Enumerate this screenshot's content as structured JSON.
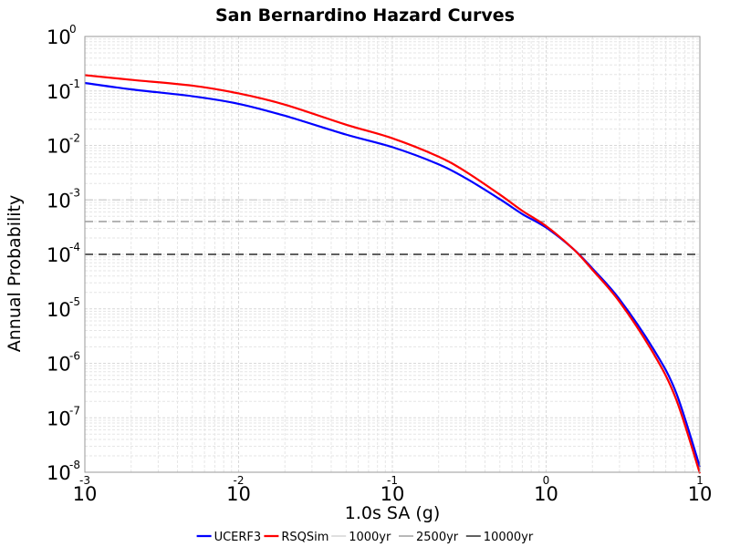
{
  "chart_data": {
    "type": "line",
    "title": "San Bernardino Hazard Curves",
    "xlabel": "1.0s SA (g)",
    "ylabel": "Annual Probability",
    "x_scale": "log",
    "y_scale": "log",
    "xlim": [
      0.001,
      10
    ],
    "ylim": [
      1e-08,
      1
    ],
    "grid": true,
    "legend_position": "bottom",
    "x_ticks": [
      {
        "base": "10",
        "exp": "-3",
        "value": 0.001
      },
      {
        "base": "10",
        "exp": "-2",
        "value": 0.01
      },
      {
        "base": "10",
        "exp": "-1",
        "value": 0.1
      },
      {
        "base": "10",
        "exp": "0",
        "value": 1
      },
      {
        "base": "10",
        "exp": "1",
        "value": 10
      }
    ],
    "y_ticks": [
      {
        "base": "10",
        "exp": "0",
        "value": 1
      },
      {
        "base": "10",
        "exp": "-1",
        "value": 0.1
      },
      {
        "base": "10",
        "exp": "-2",
        "value": 0.01
      },
      {
        "base": "10",
        "exp": "-3",
        "value": 0.001
      },
      {
        "base": "10",
        "exp": "-4",
        "value": 0.0001
      },
      {
        "base": "10",
        "exp": "-5",
        "value": 1e-05
      },
      {
        "base": "10",
        "exp": "-6",
        "value": 1e-06
      },
      {
        "base": "10",
        "exp": "-7",
        "value": 1e-07
      },
      {
        "base": "10",
        "exp": "-8",
        "value": 1e-08
      }
    ],
    "series": [
      {
        "name": "UCERF3",
        "color": "#0000ff",
        "x": [
          0.001,
          0.002,
          0.005,
          0.01,
          0.02,
          0.05,
          0.1,
          0.2,
          0.3,
          0.5,
          0.7,
          1,
          1.5,
          2,
          3,
          5,
          7,
          10
        ],
        "y": [
          0.14,
          0.107,
          0.08,
          0.058,
          0.035,
          0.0158,
          0.0093,
          0.0045,
          0.0025,
          0.00103,
          0.00055,
          0.00031,
          0.000126,
          5.5e-05,
          1.5e-05,
          1.8e-06,
          2.9e-07,
          1.25e-08
        ]
      },
      {
        "name": "RSQSim",
        "color": "#ff0000",
        "x": [
          0.001,
          0.002,
          0.005,
          0.01,
          0.02,
          0.05,
          0.1,
          0.2,
          0.3,
          0.5,
          0.7,
          1,
          1.5,
          2,
          3,
          5,
          7,
          10
        ],
        "y": [
          0.195,
          0.16,
          0.125,
          0.09,
          0.056,
          0.024,
          0.0135,
          0.0062,
          0.0033,
          0.00125,
          0.00063,
          0.00033,
          0.000126,
          5.2e-05,
          1.35e-05,
          1.5e-06,
          2.2e-07,
          9.5e-09
        ]
      }
    ],
    "reference_lines": [
      {
        "name": "1000yr",
        "y": 0.001,
        "color": "#cccccc"
      },
      {
        "name": "2500yr",
        "y": 0.0004,
        "color": "#888888"
      },
      {
        "name": "10000yr",
        "y": 0.0001,
        "color": "#000000"
      }
    ]
  }
}
